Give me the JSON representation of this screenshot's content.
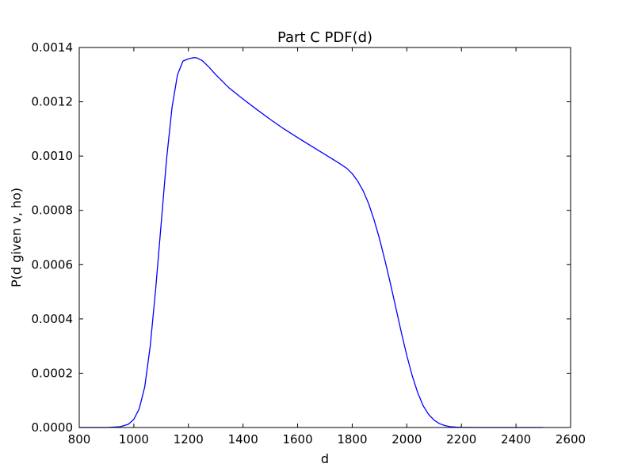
{
  "chart_data": {
    "type": "line",
    "title": "Part C PDF(d)",
    "xlabel": "d",
    "ylabel": "P(d given v, ho)",
    "xlim": [
      800,
      2600
    ],
    "ylim": [
      0,
      0.0014
    ],
    "xticks": [
      800,
      1000,
      1200,
      1400,
      1600,
      1800,
      2000,
      2200,
      2400,
      2600
    ],
    "yticks": [
      0,
      0.0002,
      0.0004,
      0.0006,
      0.0008,
      0.001,
      0.0012,
      0.0014
    ],
    "xtick_labels": [
      "800",
      "1000",
      "1200",
      "1400",
      "1600",
      "1800",
      "2000",
      "2200",
      "2400",
      "2600"
    ],
    "ytick_labels": [
      "0.0000",
      "0.0002",
      "0.0004",
      "0.0006",
      "0.0008",
      "0.0010",
      "0.0012",
      "0.0014"
    ],
    "grid": false,
    "line_color": "#0000ff",
    "series": [
      {
        "x": [
          800,
          900,
          950,
          980,
          1000,
          1020,
          1040,
          1060,
          1080,
          1100,
          1120,
          1140,
          1160,
          1180,
          1200,
          1220,
          1230,
          1250,
          1275,
          1300,
          1350,
          1400,
          1450,
          1500,
          1550,
          1600,
          1650,
          1700,
          1750,
          1780,
          1800,
          1820,
          1840,
          1860,
          1880,
          1900,
          1920,
          1940,
          1960,
          1980,
          2000,
          2020,
          2040,
          2060,
          2080,
          2100,
          2120,
          2140,
          2160,
          2180,
          2200,
          2250,
          2300,
          2350,
          2400,
          2500
        ],
        "y": [
          0,
          0,
          3e-06,
          1.2e-05,
          3e-05,
          7e-05,
          0.00015,
          0.0003,
          0.00051,
          0.00075,
          0.00099,
          0.00118,
          0.0013,
          0.00135,
          0.001358,
          0.001363,
          0.001362,
          0.001352,
          0.001328,
          0.0013,
          0.00125,
          0.00121,
          0.001172,
          0.001135,
          0.0011,
          0.001068,
          0.001037,
          0.001006,
          0.000975,
          0.000955,
          0.000935,
          0.000908,
          0.000872,
          0.000825,
          0.000765,
          0.000695,
          0.000615,
          0.00053,
          0.00044,
          0.00035,
          0.000265,
          0.00019,
          0.000128,
          8e-05,
          4.8e-05,
          2.7e-05,
          1.4e-05,
          7e-06,
          3e-06,
          1.5e-06,
          6e-07,
          1e-07,
          0,
          0,
          0,
          0
        ]
      }
    ]
  }
}
